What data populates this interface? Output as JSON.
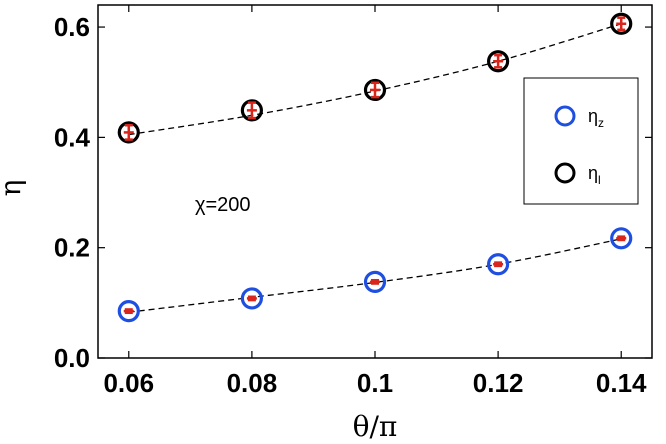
{
  "chart_data": {
    "type": "scatter",
    "title": "",
    "xlabel": "θ/π",
    "ylabel": "η",
    "xlim": [
      0.055,
      0.145
    ],
    "ylim": [
      0.0,
      0.64
    ],
    "xticks": [
      0.06,
      0.08,
      0.1,
      0.12,
      0.14
    ],
    "xtick_labels": [
      "0.06",
      "0.08",
      "0.1",
      "0.12",
      "0.14"
    ],
    "yticks": [
      0.0,
      0.2,
      0.4,
      0.6
    ],
    "ytick_labels": [
      "0.0",
      "0.2",
      "0.4",
      "0.6"
    ],
    "grid": false,
    "legend_position": "right",
    "annotation": "χ=200",
    "series": [
      {
        "name": "η_z",
        "legend_main": "η",
        "legend_sub": "z",
        "marker": "circle",
        "color": "#1f4fe0",
        "x": [
          0.06,
          0.08,
          0.1,
          0.12,
          0.14
        ],
        "y": [
          0.085,
          0.108,
          0.138,
          0.17,
          0.217
        ],
        "err": [
          0.003,
          0.003,
          0.003,
          0.003,
          0.003
        ],
        "fit": [
          0.083,
          0.11,
          0.137,
          0.17,
          0.216
        ]
      },
      {
        "name": "η_l",
        "legend_main": "η",
        "legend_sub": "l",
        "marker": "circle",
        "color": "#000000",
        "x": [
          0.06,
          0.08,
          0.1,
          0.12,
          0.14
        ],
        "y": [
          0.409,
          0.449,
          0.486,
          0.538,
          0.606
        ],
        "err": [
          0.013,
          0.014,
          0.013,
          0.011,
          0.011
        ],
        "fit": [
          0.405,
          0.44,
          0.484,
          0.538,
          0.606
        ]
      }
    ],
    "errorbar_color": "#d8261c",
    "fit_style": "dashed"
  }
}
